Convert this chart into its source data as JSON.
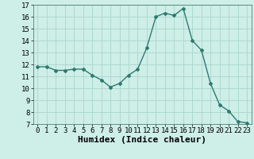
{
  "x": [
    0,
    1,
    2,
    3,
    4,
    5,
    6,
    7,
    8,
    9,
    10,
    11,
    12,
    13,
    14,
    15,
    16,
    17,
    18,
    19,
    20,
    21,
    22,
    23
  ],
  "y": [
    11.8,
    11.8,
    11.5,
    11.5,
    11.6,
    11.6,
    11.1,
    10.7,
    10.1,
    10.4,
    11.1,
    11.6,
    13.4,
    16.0,
    16.3,
    16.1,
    16.7,
    14.0,
    13.2,
    10.4,
    8.6,
    8.1,
    7.2,
    7.1
  ],
  "line_color": "#2d7a70",
  "marker": "D",
  "marker_size": 2.0,
  "bg_color": "#ceeee8",
  "grid_color": "#a8d5cd",
  "xlabel": "Humidex (Indice chaleur)",
  "xlim": [
    -0.5,
    23.5
  ],
  "ylim": [
    7,
    17
  ],
  "yticks": [
    7,
    8,
    9,
    10,
    11,
    12,
    13,
    14,
    15,
    16,
    17
  ],
  "xticks": [
    0,
    1,
    2,
    3,
    4,
    5,
    6,
    7,
    8,
    9,
    10,
    11,
    12,
    13,
    14,
    15,
    16,
    17,
    18,
    19,
    20,
    21,
    22,
    23
  ],
  "tick_fontsize": 6.5,
  "xlabel_fontsize": 8.0,
  "line_width": 1.0
}
